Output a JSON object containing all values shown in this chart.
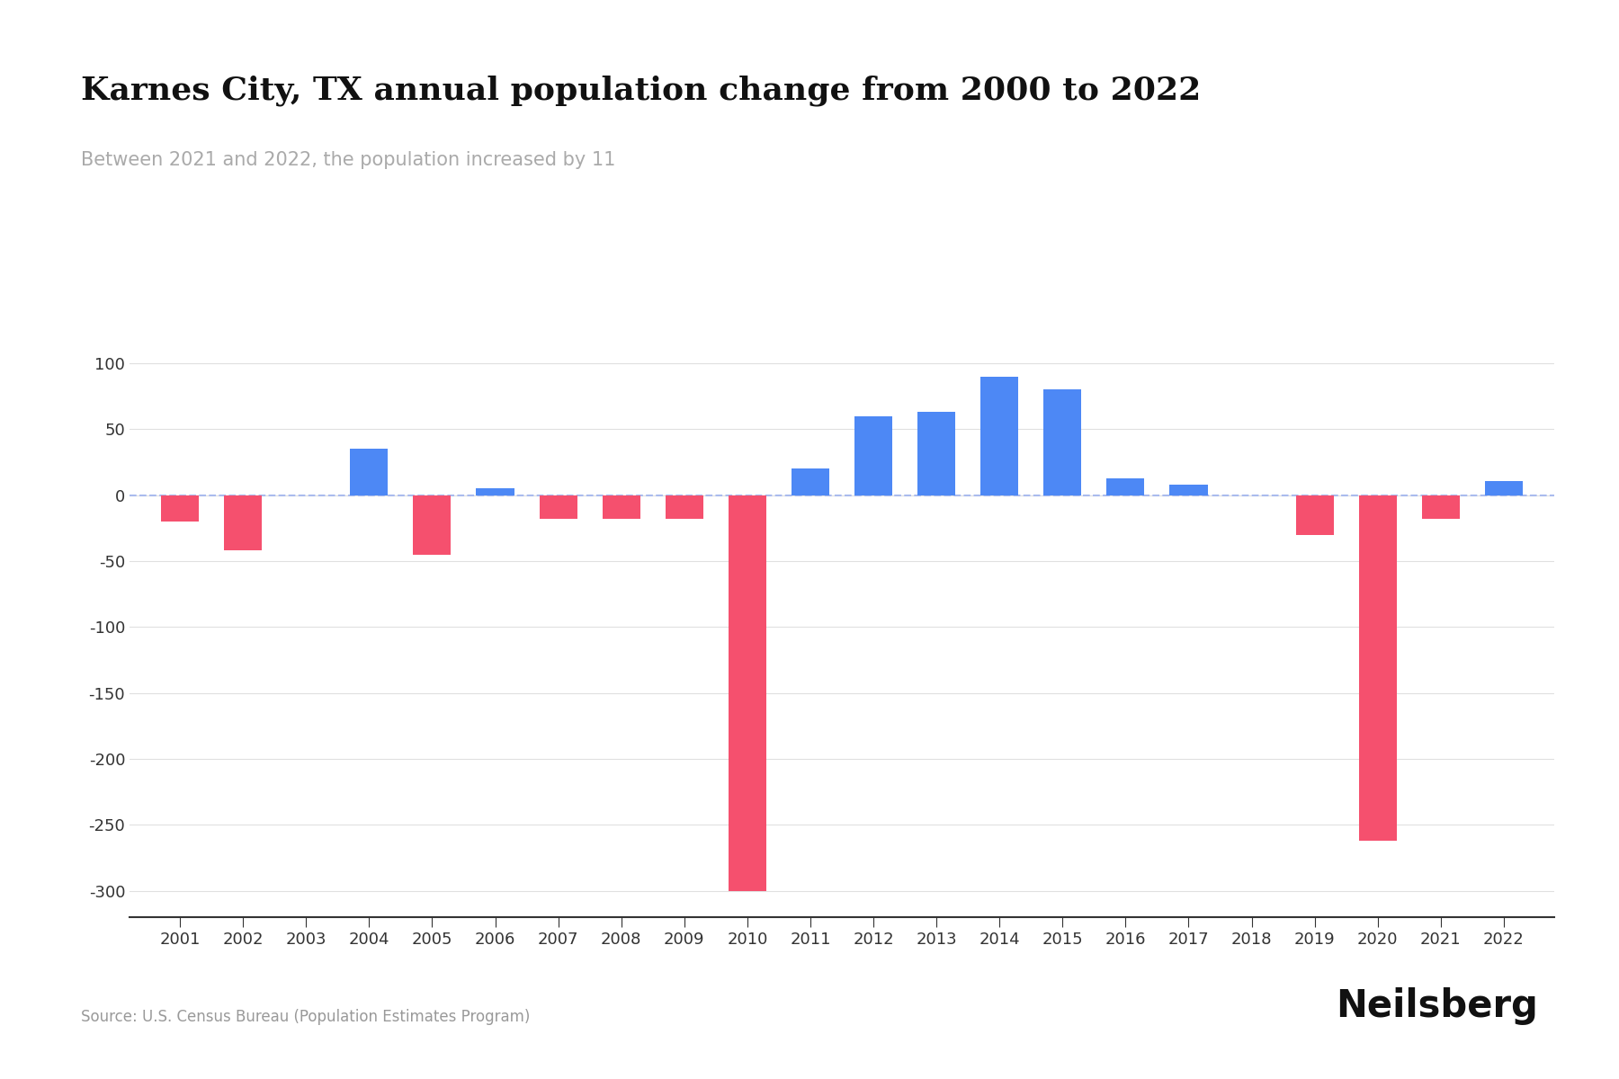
{
  "title": "Karnes City, TX annual population change from 2000 to 2022",
  "subtitle": "Between 2021 and 2022, the population increased by 11",
  "source": "Source: U.S. Census Bureau (Population Estimates Program)",
  "years": [
    2001,
    2002,
    2003,
    2004,
    2005,
    2006,
    2007,
    2008,
    2009,
    2010,
    2011,
    2012,
    2013,
    2014,
    2015,
    2016,
    2017,
    2018,
    2019,
    2020,
    2021,
    2022
  ],
  "values": [
    -20,
    -42,
    0,
    35,
    -45,
    5,
    -18,
    -18,
    -18,
    -300,
    20,
    60,
    63,
    90,
    80,
    13,
    8,
    0,
    -30,
    -262,
    -18,
    11
  ],
  "positive_color": "#4d88f5",
  "negative_color": "#f5506e",
  "background_color": "#ffffff",
  "dash_color": "#aabbee",
  "ylim": [
    -320,
    130
  ],
  "yticks": [
    100,
    50,
    0,
    -50,
    -100,
    -150,
    -200,
    -250,
    -300
  ],
  "title_fontsize": 26,
  "subtitle_fontsize": 15,
  "tick_fontsize": 13,
  "source_fontsize": 12,
  "brand": "Neilsberg",
  "brand_fontsize": 30
}
